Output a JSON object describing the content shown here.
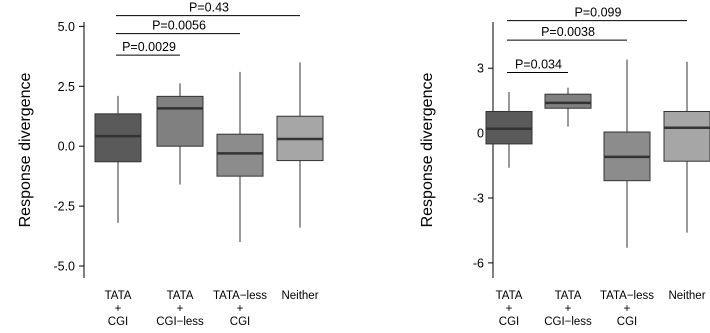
{
  "colors": {
    "box_fills": [
      "#5a5a5a",
      "#808080",
      "#8c8c8c",
      "#a6a6a6"
    ],
    "median": "#333333",
    "axis": "#000000"
  },
  "chart_data": [
    {
      "type": "box",
      "ylabel": "Response divergence",
      "ylim": [
        -5.5,
        5.6
      ],
      "yticks": [
        -5.0,
        -2.5,
        0.0,
        2.5,
        5.0
      ],
      "ytick_labels": [
        "-5.0",
        "-2.5",
        "0.0",
        "2.5",
        "5.0"
      ],
      "categories": [
        [
          "TATA",
          "+",
          "CGI"
        ],
        [
          "TATA",
          "+",
          "CGI−less"
        ],
        [
          "TATA−less",
          "+",
          "CGI"
        ],
        [
          "Neither"
        ]
      ],
      "boxes": [
        {
          "min": -3.2,
          "q1": -0.65,
          "median": 0.42,
          "q3": 1.35,
          "max": 2.1
        },
        {
          "min": -1.6,
          "q1": 0.0,
          "median": 1.58,
          "q3": 2.08,
          "max": 2.62
        },
        {
          "min": -4.0,
          "q1": -1.25,
          "median": -0.3,
          "q3": 0.5,
          "max": 3.1
        },
        {
          "min": -3.4,
          "q1": -0.6,
          "median": 0.3,
          "q3": 1.25,
          "max": 3.5
        }
      ],
      "comparisons": [
        {
          "from": 0,
          "to": 3,
          "y": 5.45,
          "label": "P=0.43"
        },
        {
          "from": 0,
          "to": 2,
          "y": 4.7,
          "label": "P=0.0056"
        },
        {
          "from": 0,
          "to": 1,
          "y": 3.8,
          "label": "P=0.0029"
        }
      ]
    },
    {
      "type": "box",
      "ylabel": "Response divergence",
      "ylim": [
        -6.7,
        5.6
      ],
      "yticks": [
        -6,
        -3,
        0,
        3
      ],
      "ytick_labels": [
        "-6",
        "-3",
        "0",
        "3"
      ],
      "categories": [
        [
          "TATA",
          "+",
          "CGI"
        ],
        [
          "TATA",
          "+",
          "CGI−less"
        ],
        [
          "TATA−less",
          "+",
          "CGI"
        ],
        [
          "Neither"
        ]
      ],
      "boxes": [
        {
          "min": -1.6,
          "q1": -0.5,
          "median": 0.2,
          "q3": 1.0,
          "max": 1.9
        },
        {
          "min": 0.3,
          "q1": 1.15,
          "median": 1.4,
          "q3": 1.8,
          "max": 2.1
        },
        {
          "min": -5.3,
          "q1": -2.2,
          "median": -1.1,
          "q3": 0.05,
          "max": 3.4
        },
        {
          "min": -4.6,
          "q1": -1.3,
          "median": 0.25,
          "q3": 1.0,
          "max": 3.3
        }
      ],
      "comparisons": [
        {
          "from": 0,
          "to": 3,
          "y": 5.2,
          "label": "P=0.099"
        },
        {
          "from": 0,
          "to": 2,
          "y": 4.3,
          "label": "P=0.0038"
        },
        {
          "from": 0,
          "to": 1,
          "y": 2.8,
          "label": "P=0.034"
        }
      ]
    }
  ]
}
